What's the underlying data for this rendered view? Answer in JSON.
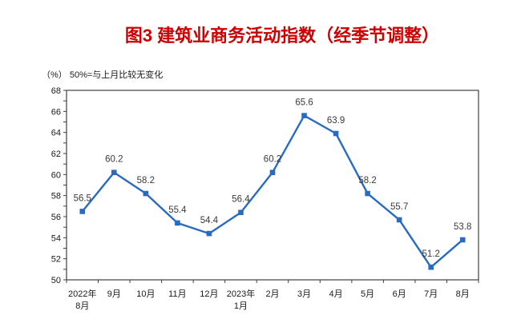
{
  "title": "图3 建筑业商务活动指数（经季节调整）",
  "subtitle": "（%）  50%=与上月比较无变化",
  "colors": {
    "title": "#cc0000",
    "line": "#2a6bc2",
    "marker": "#2a6bc2",
    "axis": "#3f3f3f",
    "tick": "#3f3f3f",
    "axis_text": "#1a1a1a",
    "data_label": "#3a3a3a",
    "background": "#ffffff"
  },
  "chart_data": {
    "type": "line",
    "title": "图3 建筑业商务活动指数（经季节调整）",
    "ylabel": "（%） 50%=与上月比较无变化",
    "xlabel": "",
    "categories": [
      "2022年\n8月",
      "9月",
      "10月",
      "11月",
      "12月",
      "2023年\n1月",
      "2月",
      "3月",
      "4月",
      "5月",
      "6月",
      "7月",
      "8月"
    ],
    "values": [
      56.5,
      60.2,
      58.2,
      55.4,
      54.4,
      56.4,
      60.2,
      65.6,
      63.9,
      58.2,
      55.7,
      51.2,
      53.8
    ],
    "ylim": [
      50,
      68
    ],
    "ytick_step": 2,
    "ytick_minor_step": 1,
    "ytick_labels": [
      "68",
      "66",
      "64",
      "62",
      "60",
      "58",
      "56",
      "54",
      "52",
      "50"
    ],
    "grid": false,
    "legend": "none",
    "marker": "square",
    "data_labels": true
  }
}
